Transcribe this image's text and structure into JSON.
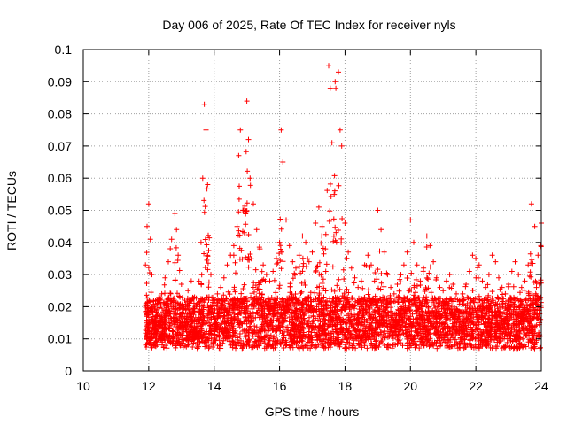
{
  "chart_data": {
    "type": "scatter",
    "title": "Day 006 of 2025, Rate Of TEC Index for receiver nyls",
    "xlabel": "GPS time / hours",
    "ylabel": "ROTI / TECUs",
    "xlim": [
      10,
      24
    ],
    "ylim": [
      0,
      0.1
    ],
    "x_ticks": [
      "10",
      "12",
      "14",
      "16",
      "18",
      "20",
      "22",
      "24"
    ],
    "y_ticks": [
      "0",
      "0.01",
      "0.02",
      "0.03",
      "0.04",
      "0.05",
      "0.06",
      "0.07",
      "0.08",
      "0.09",
      "0.1"
    ],
    "grid": true,
    "marker": "+",
    "color": "#ff0000",
    "series": [
      {
        "name": "ROTI",
        "x": [
          11.9,
          11.95,
          12.0,
          12.05,
          12.1,
          12.15,
          12.2,
          12.3,
          12.4,
          12.5,
          12.6,
          12.7,
          12.8,
          12.85,
          12.9,
          13.0,
          13.1,
          13.2,
          13.3,
          13.4,
          13.5,
          13.6,
          13.65,
          13.7,
          13.75,
          13.8,
          13.9,
          14.0,
          14.1,
          14.2,
          14.3,
          14.4,
          14.5,
          14.6,
          14.7,
          14.75,
          14.8,
          14.9,
          15.0,
          15.05,
          15.1,
          15.2,
          15.3,
          15.4,
          15.5,
          15.6,
          15.7,
          15.8,
          15.9,
          16.0,
          16.05,
          16.1,
          16.2,
          16.3,
          16.4,
          16.5,
          16.6,
          16.7,
          16.8,
          16.9,
          17.0,
          17.1,
          17.2,
          17.3,
          17.4,
          17.5,
          17.55,
          17.6,
          17.7,
          17.8,
          17.85,
          17.9,
          18.0,
          18.1,
          18.2,
          18.3,
          18.4,
          18.5,
          18.6,
          18.7,
          18.8,
          18.9,
          19.0,
          19.1,
          19.2,
          19.3,
          19.4,
          19.5,
          19.6,
          19.7,
          19.8,
          19.9,
          20.0,
          20.1,
          20.2,
          20.3,
          20.4,
          20.5,
          20.6,
          20.7,
          20.8,
          20.9,
          21.0,
          21.1,
          21.2,
          21.3,
          21.4,
          21.5,
          21.6,
          21.7,
          21.8,
          21.9,
          22.0,
          22.1,
          22.2,
          22.3,
          22.4,
          22.5,
          22.6,
          22.7,
          22.8,
          22.9,
          23.0,
          23.1,
          23.2,
          23.3,
          23.4,
          23.5,
          23.6,
          23.7,
          23.8,
          23.9,
          24.0
        ],
        "y": [
          0.033,
          0.045,
          0.052,
          0.041,
          0.03,
          0.022,
          0.019,
          0.018,
          0.024,
          0.029,
          0.034,
          0.041,
          0.049,
          0.044,
          0.036,
          0.027,
          0.022,
          0.025,
          0.028,
          0.023,
          0.02,
          0.04,
          0.06,
          0.083,
          0.075,
          0.058,
          0.03,
          0.021,
          0.024,
          0.026,
          0.029,
          0.033,
          0.036,
          0.039,
          0.045,
          0.067,
          0.075,
          0.05,
          0.084,
          0.072,
          0.06,
          0.052,
          0.044,
          0.038,
          0.033,
          0.03,
          0.028,
          0.031,
          0.035,
          0.04,
          0.075,
          0.065,
          0.047,
          0.039,
          0.034,
          0.032,
          0.036,
          0.042,
          0.04,
          0.034,
          0.037,
          0.046,
          0.051,
          0.045,
          0.038,
          0.095,
          0.088,
          0.071,
          0.09,
          0.093,
          0.075,
          0.07,
          0.046,
          0.037,
          0.032,
          0.029,
          0.026,
          0.028,
          0.033,
          0.036,
          0.033,
          0.028,
          0.05,
          0.044,
          0.037,
          0.03,
          0.026,
          0.024,
          0.027,
          0.03,
          0.033,
          0.037,
          0.047,
          0.04,
          0.033,
          0.028,
          0.032,
          0.042,
          0.039,
          0.034,
          0.029,
          0.026,
          0.025,
          0.028,
          0.03,
          0.027,
          0.024,
          0.022,
          0.024,
          0.027,
          0.031,
          0.036,
          0.035,
          0.033,
          0.028,
          0.026,
          0.03,
          0.036,
          0.034,
          0.029,
          0.026,
          0.024,
          0.027,
          0.031,
          0.034,
          0.03,
          0.026,
          0.028,
          0.033,
          0.052,
          0.045,
          0.036,
          0.046
        ]
      }
    ]
  }
}
